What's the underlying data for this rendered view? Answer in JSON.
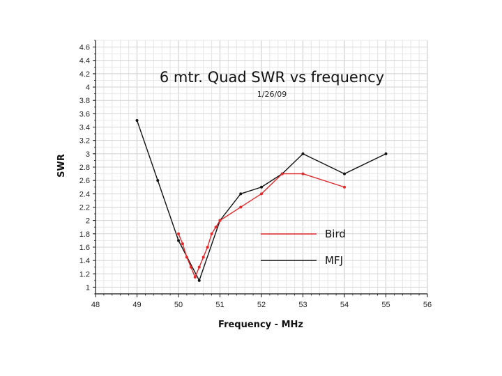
{
  "chart_data": {
    "type": "line",
    "title": "6 mtr. Quad SWR vs frequency",
    "subtitle": "1/26/09",
    "xlabel": "Frequency - MHz",
    "ylabel": "SWR",
    "xlim": [
      48,
      56
    ],
    "ylim": [
      0.9,
      4.7
    ],
    "x_ticks": [
      "48",
      "49",
      "50",
      "51",
      "52",
      "53",
      "54",
      "55",
      "56"
    ],
    "y_ticks": [
      "1",
      "1.2",
      "1.4",
      "1.6",
      "1.8",
      "2",
      "2.2",
      "2.4",
      "2.6",
      "2.8",
      "3",
      "3.2",
      "3.4",
      "3.6",
      "3.8",
      "4",
      "4.2",
      "4.4",
      "4.6"
    ],
    "grid": true,
    "legend_position": "center-right",
    "series": [
      {
        "name": "Bird",
        "color": "#e0282b",
        "x": [
          50.0,
          50.1,
          50.2,
          50.3,
          50.4,
          50.5,
          50.6,
          50.7,
          50.8,
          50.9,
          51.0,
          51.5,
          52.0,
          52.5,
          53.0,
          54.0
        ],
        "y": [
          1.8,
          1.65,
          1.45,
          1.3,
          1.15,
          1.3,
          1.45,
          1.6,
          1.8,
          1.9,
          2.0,
          2.2,
          2.4,
          2.7,
          2.7,
          2.5
        ]
      },
      {
        "name": "MFJ",
        "color": "#111111",
        "x": [
          49.0,
          49.5,
          50.0,
          50.5,
          51.0,
          51.5,
          52.0,
          52.5,
          53.0,
          54.0,
          55.0
        ],
        "y": [
          3.5,
          2.6,
          1.7,
          1.1,
          2.0,
          2.4,
          2.5,
          2.7,
          3.0,
          2.7,
          3.0
        ]
      }
    ]
  }
}
